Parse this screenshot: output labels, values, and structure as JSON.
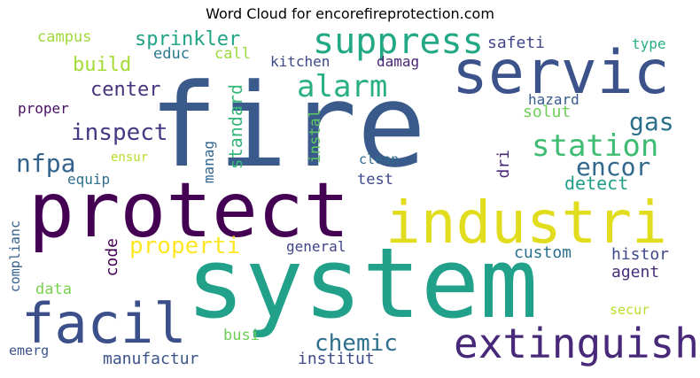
{
  "chart_data": {
    "type": "wordcloud",
    "title": "Word Cloud for encorefireprotection.com",
    "words": [
      {
        "text": "fire",
        "color": "#3b5a8c",
        "orient": "h"
      },
      {
        "text": "system",
        "color": "#21a08a",
        "orient": "h"
      },
      {
        "text": "protect",
        "color": "#440154",
        "orient": "h"
      },
      {
        "text": "servic",
        "color": "#3b528b",
        "orient": "h"
      },
      {
        "text": "industri",
        "color": "#e1dd1e",
        "orient": "h"
      },
      {
        "text": "facil",
        "color": "#3b4f8a",
        "orient": "h"
      },
      {
        "text": "extinguish",
        "color": "#482878",
        "orient": "h"
      },
      {
        "text": "suppress",
        "color": "#22a884",
        "orient": "h"
      },
      {
        "text": "station",
        "color": "#3fbc73",
        "orient": "h"
      },
      {
        "text": "alarm",
        "color": "#2ab07f",
        "orient": "h"
      },
      {
        "text": "encor",
        "color": "#31688e",
        "orient": "h"
      },
      {
        "text": "gas",
        "color": "#2d708e",
        "orient": "h"
      },
      {
        "text": "inspect",
        "color": "#443983",
        "orient": "h"
      },
      {
        "text": "nfpa",
        "color": "#33638d",
        "orient": "h"
      },
      {
        "text": "chemic",
        "color": "#2e6f8e",
        "orient": "h"
      },
      {
        "text": "properti",
        "color": "#fde725",
        "orient": "h"
      },
      {
        "text": "sprinkler",
        "color": "#20a386",
        "orient": "h"
      },
      {
        "text": "build",
        "color": "#a5db36",
        "orient": "h"
      },
      {
        "text": "center",
        "color": "#46327e",
        "orient": "h"
      },
      {
        "text": "standard",
        "color": "#35b779",
        "orient": "v"
      },
      {
        "text": "detect",
        "color": "#1f9e89",
        "orient": "h"
      },
      {
        "text": "custom",
        "color": "#2c728e",
        "orient": "h"
      },
      {
        "text": "histor",
        "color": "#3e4989",
        "orient": "h"
      },
      {
        "text": "agent",
        "color": "#472d7b",
        "orient": "h"
      },
      {
        "text": "safeti",
        "color": "#404688",
        "orient": "h"
      },
      {
        "text": "solut",
        "color": "#6ece58",
        "orient": "h"
      },
      {
        "text": "code",
        "color": "#440154",
        "orient": "v"
      },
      {
        "text": "dri",
        "color": "#482878",
        "orient": "v"
      },
      {
        "text": "manufactur",
        "color": "#3b528b",
        "orient": "h"
      },
      {
        "text": "institut",
        "color": "#3e4a89",
        "orient": "h"
      },
      {
        "text": "instal",
        "color": "#5ec962",
        "orient": "v"
      },
      {
        "text": "campus",
        "color": "#a0da39",
        "orient": "h"
      },
      {
        "text": "educ",
        "color": "#2a788e",
        "orient": "h"
      },
      {
        "text": "call",
        "color": "#9bd93c",
        "orient": "h"
      },
      {
        "text": "test",
        "color": "#3f4788",
        "orient": "h"
      },
      {
        "text": "data",
        "color": "#7ad151",
        "orient": "h"
      },
      {
        "text": "busi",
        "color": "#6ece58",
        "orient": "h"
      },
      {
        "text": "general",
        "color": "#414487",
        "orient": "h"
      },
      {
        "text": "equip",
        "color": "#2e6e8e",
        "orient": "h"
      },
      {
        "text": "manag",
        "color": "#31668e",
        "orient": "v"
      },
      {
        "text": "kitchen",
        "color": "#3e4989",
        "orient": "h"
      },
      {
        "text": "damag",
        "color": "#482475",
        "orient": "h"
      },
      {
        "text": "type",
        "color": "#29af7f",
        "orient": "h"
      },
      {
        "text": "hazard",
        "color": "#38598c",
        "orient": "h"
      },
      {
        "text": "proper",
        "color": "#471063",
        "orient": "h"
      },
      {
        "text": "clean",
        "color": "#30698e",
        "orient": "h"
      },
      {
        "text": "ensur",
        "color": "#b5de2b",
        "orient": "h"
      },
      {
        "text": "secur",
        "color": "#b8de29",
        "orient": "h"
      },
      {
        "text": "emerg",
        "color": "#3b528b",
        "orient": "h"
      },
      {
        "text": "complianc",
        "color": "#355f8d",
        "orient": "v"
      }
    ]
  }
}
